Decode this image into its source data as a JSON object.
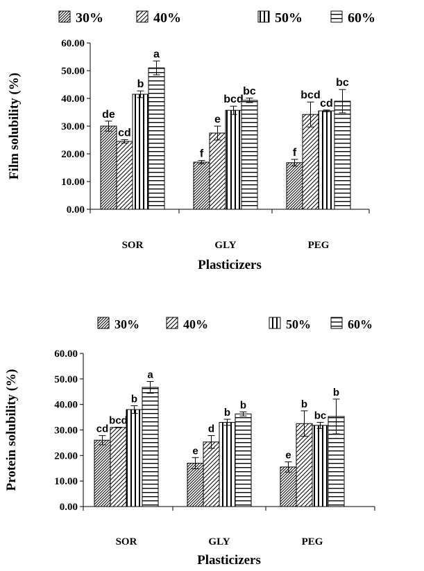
{
  "chart_data": [
    {
      "type": "bar",
      "title": "",
      "xlabel": "Plasticizers",
      "ylabel": "Film solubility (%)",
      "ylim": [
        0,
        60
      ],
      "yticks": [
        "0.00",
        "10.00",
        "20.00",
        "30.00",
        "40.00",
        "50.00",
        "60.00"
      ],
      "categories": [
        "SOR",
        "GLY",
        "PEG"
      ],
      "legend_position": "top",
      "series": [
        {
          "name": "30%",
          "pattern": "diagonal-dense",
          "values": [
            30,
            17,
            16.8
          ],
          "errors": [
            1.8,
            0.6,
            1.2
          ],
          "letters": [
            "de",
            "f",
            "f"
          ]
        },
        {
          "name": "40%",
          "pattern": "diagonal-sparse",
          "values": [
            24.5,
            27.5,
            34.2
          ],
          "errors": [
            0.6,
            2.5,
            4.5
          ],
          "letters": [
            "cd",
            "e",
            "bcd"
          ]
        },
        {
          "name": "50%",
          "pattern": "vertical",
          "values": [
            41.5,
            35.7,
            35.5
          ],
          "errors": [
            1.2,
            1.5,
            0.3
          ],
          "letters": [
            "b",
            "bcd",
            "cd"
          ]
        },
        {
          "name": "60%",
          "pattern": "horizontal",
          "values": [
            51,
            39.3,
            39
          ],
          "errors": [
            2.5,
            0.8,
            4.2
          ],
          "letters": [
            "a",
            "bc",
            "bc"
          ]
        }
      ]
    },
    {
      "type": "bar",
      "title": "",
      "xlabel": "Plasticizers",
      "ylabel": "Protein solubility (%)",
      "ylim": [
        0,
        60
      ],
      "yticks": [
        "0.00",
        "10.00",
        "20.00",
        "30.00",
        "40.00",
        "50.00",
        "60.00"
      ],
      "categories": [
        "SOR",
        "GLY",
        "PEG"
      ],
      "legend_position": "top",
      "series": [
        {
          "name": "30%",
          "pattern": "diagonal-dense",
          "values": [
            26,
            17,
            15.5
          ],
          "errors": [
            1.8,
            2.2,
            2
          ],
          "letters": [
            "cd",
            "e",
            "e"
          ]
        },
        {
          "name": "40%",
          "pattern": "diagonal-sparse",
          "values": [
            31,
            25.3,
            32.5
          ],
          "errors": [
            0.1,
            2.5,
            5
          ],
          "letters": [
            "bcd",
            "d",
            "b"
          ]
        },
        {
          "name": "50%",
          "pattern": "vertical",
          "values": [
            38,
            33,
            31.8
          ],
          "errors": [
            1.5,
            1.2,
            1.2
          ],
          "letters": [
            "b",
            "b",
            "bc"
          ]
        },
        {
          "name": "60%",
          "pattern": "horizontal",
          "values": [
            46.7,
            36.3,
            35.3
          ],
          "errors": [
            2.3,
            0.8,
            6.8
          ],
          "letters": [
            "a",
            "b",
            "b"
          ]
        }
      ]
    }
  ]
}
